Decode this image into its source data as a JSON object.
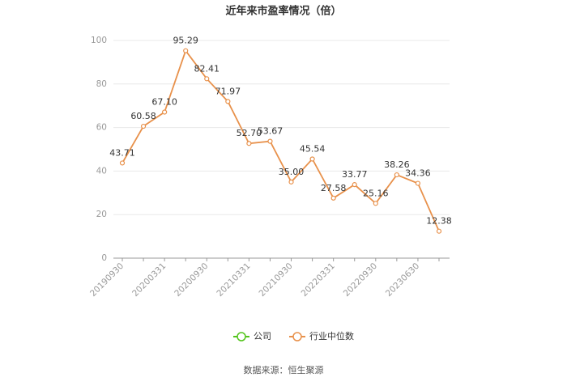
{
  "chart_data": {
    "type": "line",
    "title": "近年来市盈率情况（倍）",
    "categories": [
      "20190930",
      null,
      "20200331",
      null,
      "20200930",
      null,
      "20210331",
      null,
      "20210930",
      null,
      "20220331",
      null,
      "20220930",
      null,
      "20230630",
      null
    ],
    "series": [
      {
        "name": "公司",
        "color": "#52c41a",
        "values": [
          null,
          null,
          null,
          null,
          null,
          null,
          null,
          null,
          null,
          null,
          null,
          null,
          null,
          null,
          null,
          null
        ]
      },
      {
        "name": "行业中位数",
        "color": "#e8914b",
        "values": [
          43.71,
          60.58,
          67.1,
          95.29,
          82.41,
          71.97,
          52.7,
          53.67,
          35,
          45.54,
          27.58,
          33.77,
          25.16,
          38.26,
          34.36,
          12.38
        ],
        "value_labels": [
          "43.71",
          "60.58",
          "67.10",
          "95.29",
          "82.41",
          "71.97",
          "52.70",
          "53.67",
          "35.00",
          "45.54",
          "27.58",
          "33.77",
          "25.16",
          "38.26",
          "34.36",
          "12.38"
        ]
      }
    ],
    "ylim": [
      0,
      100
    ],
    "yticks": [
      0,
      20,
      40,
      60,
      80,
      100
    ],
    "grid": true,
    "legend": "bottom",
    "source": "数据来源：恒生聚源"
  }
}
